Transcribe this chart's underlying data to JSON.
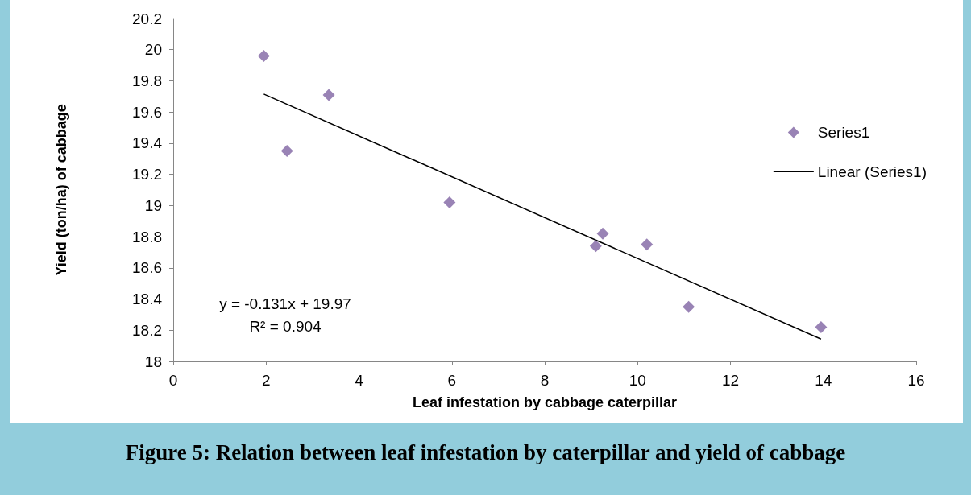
{
  "chart_data": {
    "type": "scatter",
    "title": "Figure 5: Relation between leaf infestation by caterpillar and yield of cabbage",
    "xlabel": "Leaf infestation by cabbage caterpillar",
    "ylabel": "Yield (ton/ha) of cabbage",
    "xlim": [
      0,
      16
    ],
    "xticks": [
      0,
      2,
      4,
      6,
      8,
      10,
      12,
      14,
      16
    ],
    "ylim": [
      18,
      20.2
    ],
    "yticks": [
      18,
      18.2,
      18.4,
      18.6,
      18.8,
      19,
      19.2,
      19.4,
      19.6,
      19.8,
      20,
      20.2
    ],
    "grid": false,
    "legend": "right",
    "marker": "diamond",
    "series": [
      {
        "name": "Series1",
        "color": "#8064a2",
        "x": [
          1.95,
          2.45,
          3.35,
          5.95,
          9.1,
          9.25,
          10.2,
          11.1,
          13.95
        ],
        "values": [
          19.96,
          19.35,
          19.71,
          19.02,
          18.74,
          18.82,
          18.75,
          18.35,
          18.22
        ]
      },
      {
        "name": "Linear (Series1)",
        "type": "line",
        "color": "#000000",
        "line_style": "solid",
        "marker": "none",
        "x": [
          1.95,
          13.95
        ],
        "values": [
          19.715,
          18.143
        ]
      }
    ],
    "annotations": [
      "y = -0.131x + 19.97",
      "R² = 0.904"
    ]
  }
}
